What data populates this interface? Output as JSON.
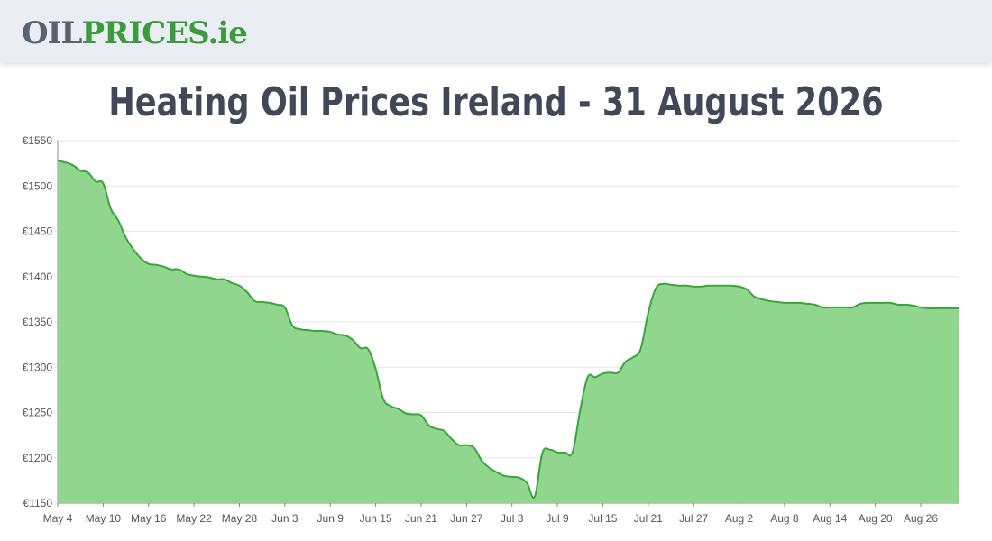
{
  "logo": {
    "part1": "OIL",
    "part2": "PRICES",
    "part3": ".ie"
  },
  "title": "Heating Oil Prices Ireland - 31 August 2026",
  "colors": {
    "fill": "#90d68f",
    "line": "#3aa53a",
    "grid": "#e6e6e6",
    "axis": "#888888"
  },
  "chart_data": {
    "type": "area",
    "ylim": [
      1150,
      1550
    ],
    "yticks": [
      {
        "value": 1550,
        "label": "€1550"
      },
      {
        "value": 1500,
        "label": "€1500"
      },
      {
        "value": 1450,
        "label": "€1450"
      },
      {
        "value": 1400,
        "label": "€1400"
      },
      {
        "value": 1350,
        "label": "€1350"
      },
      {
        "value": 1300,
        "label": "€1300"
      },
      {
        "value": 1250,
        "label": "€1250"
      },
      {
        "value": 1200,
        "label": "€1200"
      },
      {
        "value": 1150,
        "label": "€1150"
      }
    ],
    "xticks": [
      {
        "date": "2026-05-04",
        "label": "May 4"
      },
      {
        "date": "2026-05-10",
        "label": "May 10"
      },
      {
        "date": "2026-05-16",
        "label": "May 16"
      },
      {
        "date": "2026-05-22",
        "label": "May 22"
      },
      {
        "date": "2026-05-28",
        "label": "May 28"
      },
      {
        "date": "2026-06-03",
        "label": "Jun 3"
      },
      {
        "date": "2026-06-09",
        "label": "Jun 9"
      },
      {
        "date": "2026-06-15",
        "label": "Jun 15"
      },
      {
        "date": "2026-06-21",
        "label": "Jun 21"
      },
      {
        "date": "2026-06-27",
        "label": "Jun 27"
      },
      {
        "date": "2026-07-03",
        "label": "Jul 3"
      },
      {
        "date": "2026-07-09",
        "label": "Jul 9"
      },
      {
        "date": "2026-07-15",
        "label": "Jul 15"
      },
      {
        "date": "2026-07-21",
        "label": "Jul 21"
      },
      {
        "date": "2026-07-27",
        "label": "Jul 27"
      },
      {
        "date": "2026-08-02",
        "label": "Aug 2"
      },
      {
        "date": "2026-08-08",
        "label": "Aug 8"
      },
      {
        "date": "2026-08-14",
        "label": "Aug 14"
      },
      {
        "date": "2026-08-20",
        "label": "Aug 20"
      },
      {
        "date": "2026-08-26",
        "label": "Aug 26"
      }
    ],
    "x": [
      "2026-05-04",
      "2026-05-05",
      "2026-05-06",
      "2026-05-07",
      "2026-05-08",
      "2026-05-09",
      "2026-05-10",
      "2026-05-11",
      "2026-05-12",
      "2026-05-13",
      "2026-05-14",
      "2026-05-15",
      "2026-05-16",
      "2026-05-17",
      "2026-05-18",
      "2026-05-19",
      "2026-05-20",
      "2026-05-21",
      "2026-05-22",
      "2026-05-23",
      "2026-05-24",
      "2026-05-25",
      "2026-05-26",
      "2026-05-27",
      "2026-05-28",
      "2026-05-29",
      "2026-05-30",
      "2026-05-31",
      "2026-06-01",
      "2026-06-02",
      "2026-06-03",
      "2026-06-04",
      "2026-06-05",
      "2026-06-06",
      "2026-06-07",
      "2026-06-08",
      "2026-06-09",
      "2026-06-10",
      "2026-06-11",
      "2026-06-12",
      "2026-06-13",
      "2026-06-14",
      "2026-06-15",
      "2026-06-16",
      "2026-06-17",
      "2026-06-18",
      "2026-06-19",
      "2026-06-20",
      "2026-06-21",
      "2026-06-22",
      "2026-06-23",
      "2026-06-24",
      "2026-06-25",
      "2026-06-26",
      "2026-06-27",
      "2026-06-28",
      "2026-06-29",
      "2026-06-30",
      "2026-07-01",
      "2026-07-02",
      "2026-07-03",
      "2026-07-04",
      "2026-07-05",
      "2026-07-06",
      "2026-07-07",
      "2026-07-08",
      "2026-07-09",
      "2026-07-10",
      "2026-07-11",
      "2026-07-12",
      "2026-07-13",
      "2026-07-14",
      "2026-07-15",
      "2026-07-16",
      "2026-07-17",
      "2026-07-18",
      "2026-07-19",
      "2026-07-20",
      "2026-07-21",
      "2026-07-22",
      "2026-07-23",
      "2026-07-24",
      "2026-07-25",
      "2026-07-26",
      "2026-07-27",
      "2026-07-28",
      "2026-07-29",
      "2026-07-30",
      "2026-07-31",
      "2026-08-01",
      "2026-08-02",
      "2026-08-03",
      "2026-08-04",
      "2026-08-05",
      "2026-08-06",
      "2026-08-07",
      "2026-08-08",
      "2026-08-09",
      "2026-08-10",
      "2026-08-11",
      "2026-08-12",
      "2026-08-13",
      "2026-08-14",
      "2026-08-15",
      "2026-08-16",
      "2026-08-17",
      "2026-08-18",
      "2026-08-19",
      "2026-08-20",
      "2026-08-21",
      "2026-08-22",
      "2026-08-23",
      "2026-08-24",
      "2026-08-25",
      "2026-08-26",
      "2026-08-27",
      "2026-08-28",
      "2026-08-29",
      "2026-08-30",
      "2026-08-31"
    ],
    "values": [
      1528,
      1526,
      1523,
      1517,
      1515,
      1505,
      1503,
      1475,
      1462,
      1443,
      1430,
      1420,
      1414,
      1413,
      1411,
      1408,
      1408,
      1403,
      1401,
      1400,
      1399,
      1397,
      1397,
      1393,
      1390,
      1383,
      1373,
      1372,
      1371,
      1369,
      1366,
      1346,
      1342,
      1341,
      1340,
      1340,
      1339,
      1336,
      1335,
      1330,
      1321,
      1320,
      1298,
      1265,
      1257,
      1254,
      1249,
      1248,
      1247,
      1236,
      1232,
      1230,
      1221,
      1214,
      1214,
      1211,
      1197,
      1189,
      1184,
      1180,
      1179,
      1178,
      1172,
      1157,
      1205,
      1209,
      1206,
      1206,
      1206,
      1252,
      1289,
      1289,
      1293,
      1294,
      1294,
      1306,
      1311,
      1320,
      1360,
      1387,
      1392,
      1391,
      1390,
      1390,
      1389,
      1389,
      1390,
      1390,
      1390,
      1390,
      1389,
      1386,
      1378,
      1375,
      1373,
      1372,
      1371,
      1371,
      1371,
      1370,
      1369,
      1366,
      1366,
      1366,
      1366,
      1366,
      1370,
      1371,
      1371,
      1371,
      1371,
      1369,
      1369,
      1368,
      1366,
      1365,
      1365,
      1365,
      1365,
      1365
    ]
  }
}
